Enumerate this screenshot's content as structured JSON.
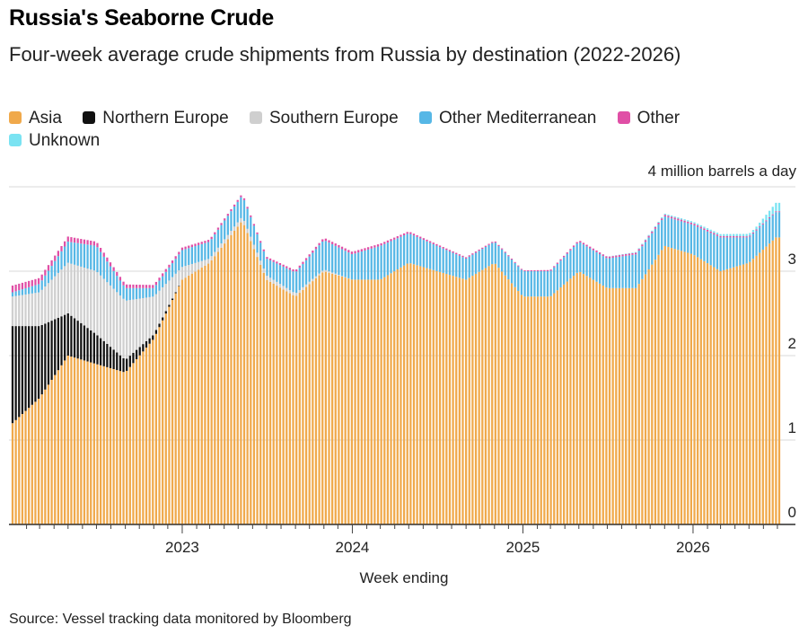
{
  "title": "Russia's Seaborne Crude",
  "subtitle": "Four-week average crude shipments from Russia by destination (2022-2026)",
  "legend": [
    {
      "label": "Asia",
      "color": "#f0a94b"
    },
    {
      "label": "Northern Europe",
      "color": "#111111"
    },
    {
      "label": "Southern Europe",
      "color": "#cfcfcf"
    },
    {
      "label": "Other Mediterranean",
      "color": "#56b7e6"
    },
    {
      "label": "Other",
      "color": "#e04fa6"
    },
    {
      "label": "Unknown",
      "color": "#7ae3f2"
    }
  ],
  "unit_label": "4 million barrels a day",
  "x_title": "Week ending",
  "source": "Source: Vessel tracking data monitored by Bloomberg",
  "chart_data": {
    "type": "bar",
    "stacked": true,
    "xlabel": "Week ending",
    "ylabel": "million barrels a day",
    "ylim": [
      0,
      4
    ],
    "yticks": [
      0,
      1,
      2,
      3,
      4
    ],
    "grid": true,
    "x_start": "2022-01-02",
    "x_end": "2026-07-05",
    "x_tick_labels": [
      {
        "label": "2023",
        "date": "2023-01-01"
      },
      {
        "label": "2024",
        "date": "2024-01-01"
      },
      {
        "label": "2025",
        "date": "2025-01-01"
      },
      {
        "label": "2026",
        "date": "2026-01-01"
      }
    ],
    "series": [
      {
        "name": "Asia",
        "color": "#f0a94b",
        "dates": [
          "2022-01-02",
          "2022-03-01",
          "2022-05-01",
          "2022-07-01",
          "2022-09-01",
          "2022-11-01",
          "2023-01-01",
          "2023-03-01",
          "2023-05-10",
          "2023-07-01",
          "2023-09-01",
          "2023-11-01",
          "2024-01-01",
          "2024-03-01",
          "2024-05-01",
          "2024-07-01",
          "2024-09-01",
          "2024-11-01",
          "2025-01-01",
          "2025-03-01",
          "2025-05-01",
          "2025-07-01",
          "2025-09-01",
          "2025-11-01",
          "2026-01-01",
          "2026-03-01",
          "2026-05-01",
          "2026-06-28"
        ],
        "values": [
          1.2,
          1.5,
          2.0,
          1.9,
          1.8,
          2.2,
          2.9,
          3.1,
          3.6,
          2.9,
          2.7,
          3.0,
          2.9,
          2.9,
          3.1,
          3.0,
          2.9,
          3.1,
          2.7,
          2.7,
          3.0,
          2.8,
          2.8,
          3.3,
          3.2,
          3.0,
          3.1,
          3.4
        ]
      },
      {
        "name": "Northern Europe",
        "color": "#111111",
        "dates": [
          "2022-01-02",
          "2022-03-01",
          "2022-05-01",
          "2022-07-01",
          "2022-09-01",
          "2022-11-01",
          "2023-01-01",
          "2026-06-28"
        ],
        "values": [
          1.15,
          0.85,
          0.5,
          0.35,
          0.15,
          0.05,
          0.0,
          0.0
        ]
      },
      {
        "name": "Southern Europe",
        "color": "#cfcfcf",
        "dates": [
          "2022-01-02",
          "2022-03-01",
          "2022-05-01",
          "2022-07-01",
          "2022-09-01",
          "2022-11-01",
          "2023-01-01",
          "2023-03-01",
          "2023-07-01",
          "2023-11-01",
          "2024-01-01",
          "2026-06-28"
        ],
        "values": [
          0.35,
          0.4,
          0.6,
          0.75,
          0.7,
          0.45,
          0.15,
          0.05,
          0.05,
          0.02,
          0.0,
          0.0
        ]
      },
      {
        "name": "Other Mediterranean",
        "color": "#56b7e6",
        "dates": [
          "2022-01-02",
          "2022-03-01",
          "2022-05-01",
          "2022-07-01",
          "2022-09-01",
          "2022-11-01",
          "2023-01-01",
          "2023-03-01",
          "2023-05-10",
          "2023-07-01",
          "2023-09-01",
          "2023-11-01",
          "2024-01-01",
          "2024-03-01",
          "2024-05-01",
          "2024-07-01",
          "2024-09-01",
          "2024-11-01",
          "2025-01-01",
          "2025-03-01",
          "2025-05-01",
          "2025-07-01",
          "2025-09-01",
          "2025-11-01",
          "2026-01-01",
          "2026-03-01",
          "2026-05-01",
          "2026-06-28"
        ],
        "values": [
          0.05,
          0.1,
          0.25,
          0.3,
          0.15,
          0.1,
          0.2,
          0.2,
          0.25,
          0.2,
          0.25,
          0.35,
          0.3,
          0.4,
          0.35,
          0.3,
          0.25,
          0.25,
          0.3,
          0.3,
          0.35,
          0.35,
          0.4,
          0.35,
          0.35,
          0.4,
          0.3,
          0.3
        ]
      },
      {
        "name": "Other",
        "color": "#e04fa6",
        "dates": [
          "2022-01-02",
          "2022-07-01",
          "2023-01-01",
          "2023-06-01",
          "2024-01-01",
          "2024-06-01",
          "2025-01-01",
          "2025-06-01",
          "2026-01-01",
          "2026-06-28"
        ],
        "values": [
          0.08,
          0.05,
          0.03,
          0.02,
          0.03,
          0.02,
          0.01,
          0.02,
          0.02,
          0.01
        ]
      },
      {
        "name": "Unknown",
        "color": "#7ae3f2",
        "dates": [
          "2022-01-02",
          "2023-01-01",
          "2025-06-01",
          "2026-02-01",
          "2026-05-15",
          "2026-06-28"
        ],
        "values": [
          0.0,
          0.0,
          0.0,
          0.02,
          0.03,
          0.1
        ]
      }
    ]
  }
}
